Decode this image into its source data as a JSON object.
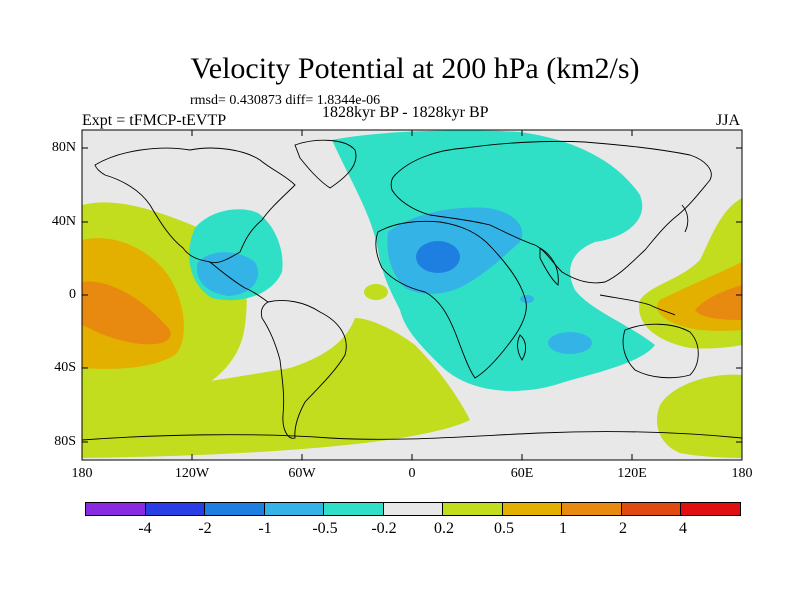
{
  "header": {
    "title": "Velocity Potential at 200 hPa (km2/s)",
    "stats": "rmsd= 0.430873 diff= 1.8344e-06",
    "experiment": "Expt = tFMCP-tEVTP",
    "period": "1828kyr BP - 1828kyr BP",
    "season": "JJA"
  },
  "axes": {
    "lat_labels": [
      "80N",
      "40N",
      "0",
      "40S",
      "80S"
    ],
    "lon_labels": [
      "180",
      "120W",
      "60W",
      "0",
      "60E",
      "120E",
      "180"
    ]
  },
  "colorbar": {
    "colors": [
      "#8a2be2",
      "#2a3ee6",
      "#1f7fe0",
      "#34b4e6",
      "#2fe0c6",
      "#e8e8e8",
      "#c2dc1e",
      "#e4b000",
      "#e88a10",
      "#e04a10",
      "#e01010"
    ],
    "labels": [
      "-4",
      "-2",
      "-1",
      "-0.5",
      "-0.2",
      "0.2",
      "0.5",
      "1",
      "2",
      "4"
    ]
  },
  "fields": {
    "background": "#e8e8e8",
    "neg_weak": "#2fe0c6",
    "neg_mid": "#34b4e6",
    "neg_strong": "#1f7fe0",
    "pos_weak": "#c2dc1e",
    "pos_mid": "#e4b000",
    "pos_strong": "#e88a10"
  }
}
